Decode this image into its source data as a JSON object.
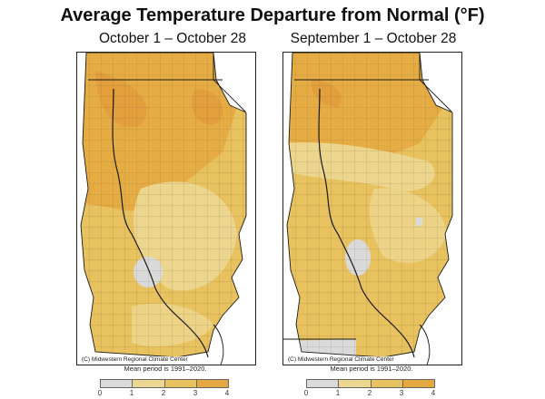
{
  "title": "Average Temperature Departure from Normal (°F)",
  "panels": [
    {
      "title": "October 1 – October 28"
    },
    {
      "title": "September 1 – October 28"
    }
  ],
  "credit": "(C) Midwestern Regional Climate Center",
  "mean_period": "Mean period is 1991–2020.",
  "legend": {
    "ticks": [
      "0",
      "1",
      "2",
      "3",
      "4"
    ],
    "bins": [
      {
        "range": "0–1",
        "color": "#dadada"
      },
      {
        "range": "1–2",
        "color": "#ecd790"
      },
      {
        "range": "2–3",
        "color": "#e8c25e"
      },
      {
        "range": "3–4",
        "color": "#e5a840"
      }
    ]
  },
  "colors": {
    "no_departure": "#dadada",
    "departure_1_2": "#ecd790",
    "departure_2_3": "#e8c25e",
    "departure_3_4": "#e5a840",
    "county_lines": "#6b5a3a",
    "state_lines": "#1a1a1a"
  }
}
